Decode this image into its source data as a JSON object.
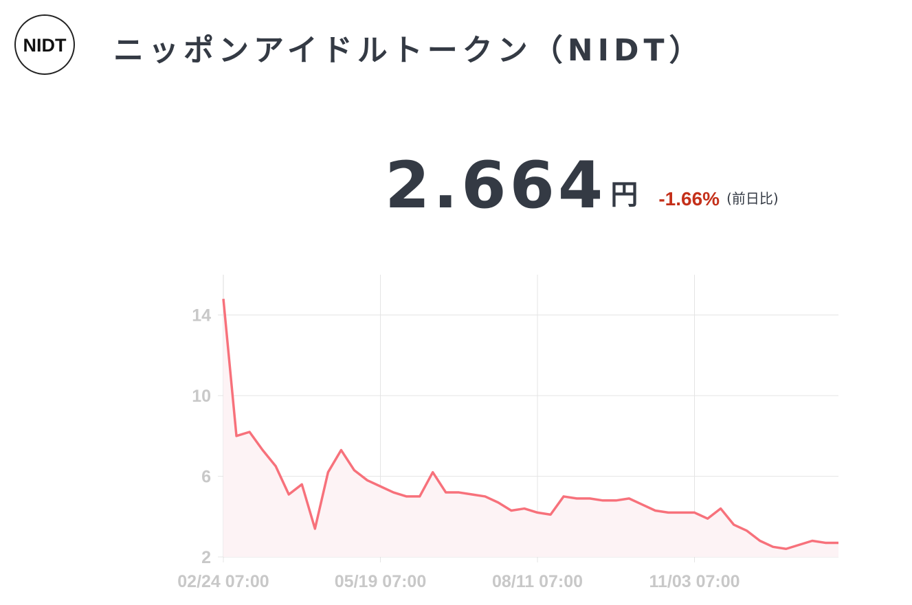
{
  "header": {
    "logo": "NIDT",
    "title": "ニッポンアイドルトークン（NIDT）"
  },
  "price": {
    "value": "2.664",
    "unit": "円",
    "change": "-1.66%",
    "note": "(前日比)"
  },
  "chart_data": {
    "type": "line",
    "categories": [
      "02/24 07:00",
      null,
      null,
      null,
      null,
      null,
      null,
      null,
      null,
      null,
      null,
      null,
      "05/19 07:00",
      null,
      null,
      null,
      null,
      null,
      null,
      null,
      null,
      null,
      null,
      null,
      "08/11 07:00",
      null,
      null,
      null,
      null,
      null,
      null,
      null,
      null,
      null,
      null,
      null,
      "11/03 07:00",
      null,
      null,
      null,
      null,
      null,
      null,
      null,
      null,
      null,
      null,
      null
    ],
    "series": [
      {
        "color": "#f7717b",
        "fill": "#fdf3f5",
        "values": [
          14.8,
          8.0,
          8.2,
          7.3,
          6.5,
          5.1,
          5.6,
          3.4,
          6.2,
          7.3,
          6.3,
          5.8,
          5.5,
          5.2,
          5.0,
          5.0,
          6.2,
          5.2,
          5.2,
          5.1,
          5.0,
          4.7,
          4.3,
          4.4,
          4.2,
          4.1,
          5.0,
          4.9,
          4.9,
          4.8,
          4.8,
          4.9,
          4.6,
          4.3,
          4.2,
          4.2,
          4.2,
          3.9,
          4.4,
          3.6,
          3.3,
          2.8,
          2.5,
          2.4,
          2.6,
          2.8,
          2.7,
          2.7
        ]
      }
    ],
    "ylim": [
      2,
      16
    ],
    "yticks": [
      2,
      6,
      10,
      14
    ],
    "grid": true
  }
}
